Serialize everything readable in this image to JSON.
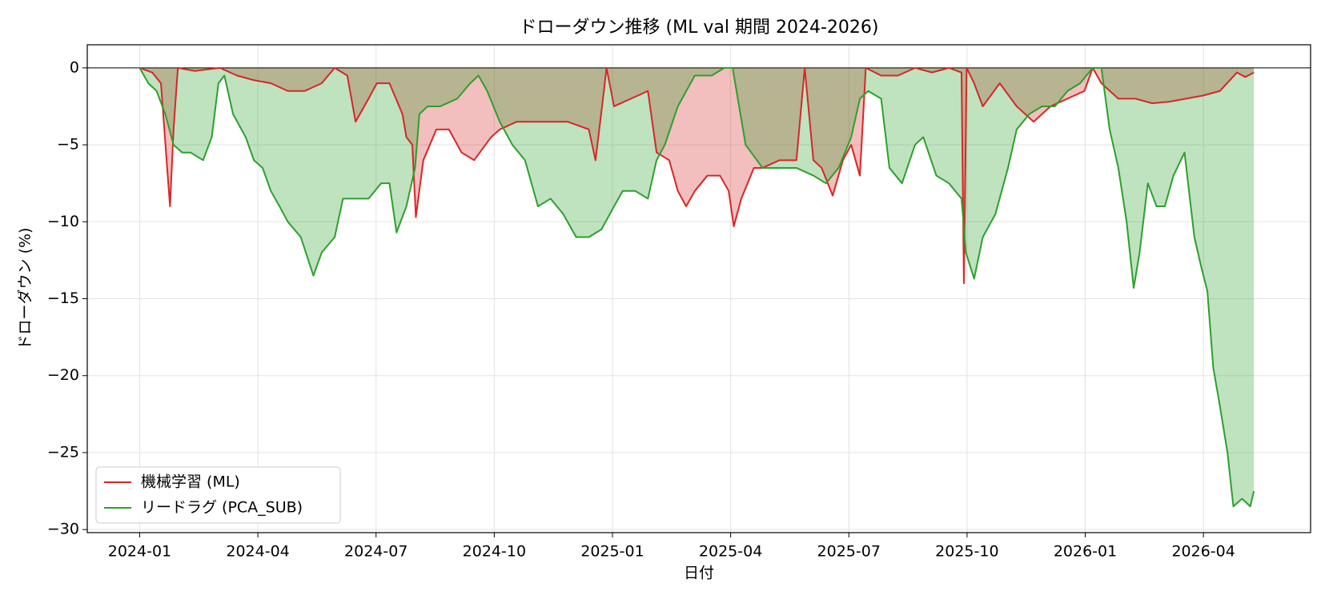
{
  "chart_data": {
    "type": "drawdown",
    "title": "ドローダウン推移 (ML val 期間 2024-2026)",
    "x_label": "日付",
    "y_label": "ドローダウン (%)",
    "xlim": [
      -1.33,
      29.72
    ],
    "ylim": [
      -30.2,
      1.5
    ],
    "xticks": [
      {
        "value": 0,
        "label": "2024-01"
      },
      {
        "value": 3,
        "label": "2024-04"
      },
      {
        "value": 6,
        "label": "2024-07"
      },
      {
        "value": 9,
        "label": "2024-10"
      },
      {
        "value": 12,
        "label": "2025-01"
      },
      {
        "value": 15,
        "label": "2025-04"
      },
      {
        "value": 18,
        "label": "2025-07"
      },
      {
        "value": 21,
        "label": "2025-10"
      },
      {
        "value": 24,
        "label": "2026-01"
      },
      {
        "value": 27,
        "label": "2026-04"
      }
    ],
    "yticks": [
      0,
      {
        "value": -5,
        "label": "−5"
      },
      {
        "value": -10,
        "label": "−10"
      },
      {
        "value": -15,
        "label": "−15"
      },
      {
        "value": -20,
        "label": "−20"
      },
      {
        "value": -25,
        "label": "−25"
      },
      {
        "value": -30,
        "label": "−30"
      }
    ],
    "grid": true,
    "legend": "lower left",
    "series": [
      {
        "name": "機械学習 (ML)",
        "color": "#d62728",
        "x": [
          0,
          0.32,
          0.54,
          0.77,
          0.86,
          0.97,
          1.4,
          2.04,
          2.47,
          2.9,
          3.33,
          3.76,
          4.19,
          4.62,
          4.95,
          5.27,
          5.48,
          5.81,
          6.02,
          6.34,
          6.67,
          6.77,
          6.92,
          7.01,
          7.2,
          7.53,
          7.85,
          8.17,
          8.49,
          8.92,
          9.14,
          9.57,
          10.22,
          10.86,
          11.4,
          11.57,
          11.76,
          11.85,
          12.04,
          12.47,
          12.9,
          13.12,
          13.44,
          13.66,
          13.87,
          14.09,
          14.41,
          14.73,
          14.95,
          15.08,
          15.27,
          15.59,
          15.81,
          16.24,
          16.67,
          16.88,
          17.1,
          17.31,
          17.59,
          17.85,
          18.06,
          18.28,
          18.43,
          18.82,
          19.25,
          19.68,
          20.11,
          20.54,
          20.86,
          20.92,
          20.99,
          21.18,
          21.4,
          21.83,
          22.26,
          22.69,
          23.12,
          23.55,
          23.98,
          24.19,
          24.41,
          24.84,
          25.27,
          25.7,
          26.13,
          26.56,
          26.99,
          27.42,
          27.85,
          28.06,
          28.28
        ],
        "values": [
          0,
          -0.3,
          -1,
          -9,
          -4,
          0,
          -0.2,
          0,
          -0.5,
          -0.8,
          -1,
          -1.5,
          -1.5,
          -1,
          0,
          -0.5,
          -3.5,
          -2,
          -1,
          -1,
          -3,
          -4.5,
          -5,
          -9.7,
          -6,
          -4,
          -4,
          -5.5,
          -6,
          -4.5,
          -4,
          -3.5,
          -3.5,
          -3.5,
          -4,
          -6,
          -2,
          0,
          -2.5,
          -2,
          -1.5,
          -5.5,
          -6,
          -8,
          -9,
          -8,
          -7,
          -7,
          -8,
          -10.3,
          -8.5,
          -6.5,
          -6.5,
          -6,
          -6,
          0,
          -6,
          -6.5,
          -8.3,
          -6,
          -5,
          -7,
          0,
          -0.5,
          -0.5,
          0,
          -0.3,
          0,
          -0.3,
          -14,
          0,
          -1,
          -2.5,
          -1,
          -2.5,
          -3.5,
          -2.5,
          -2,
          -1.5,
          0,
          -1,
          -2,
          -2,
          -2.3,
          -2.2,
          -2,
          -1.8,
          -1.5,
          -0.3,
          -0.6,
          -0.3
        ]
      },
      {
        "name": "リードラグ (PCA_SUB)",
        "color": "#2ca02c",
        "x": [
          0,
          0.22,
          0.43,
          0.65,
          0.86,
          1.08,
          1.29,
          1.61,
          1.83,
          2.0,
          2.15,
          2.37,
          2.69,
          2.9,
          3.12,
          3.33,
          3.55,
          3.76,
          4.09,
          4.41,
          4.62,
          4.95,
          5.16,
          5.48,
          5.81,
          6.13,
          6.34,
          6.52,
          6.77,
          6.99,
          7.1,
          7.31,
          7.63,
          8.06,
          8.39,
          8.6,
          8.82,
          9.14,
          9.46,
          9.78,
          10.11,
          10.43,
          10.75,
          11.08,
          11.4,
          11.72,
          12.04,
          12.26,
          12.58,
          12.9,
          13.12,
          13.33,
          13.66,
          14.09,
          14.52,
          14.84,
          15.05,
          15.38,
          15.81,
          16.24,
          16.67,
          17.1,
          17.42,
          17.74,
          18.06,
          18.28,
          18.49,
          18.82,
          19.03,
          19.35,
          19.68,
          19.89,
          20.22,
          20.54,
          20.86,
          20.97,
          21.18,
          21.4,
          21.72,
          22.04,
          22.26,
          22.58,
          22.9,
          23.23,
          23.55,
          23.87,
          24.19,
          24.41,
          24.62,
          24.84,
          25.05,
          25.23,
          25.38,
          25.59,
          25.81,
          26.02,
          26.24,
          26.52,
          26.77,
          26.95,
          27.1,
          27.25,
          27.42,
          27.61,
          27.76,
          27.98,
          28.19,
          28.28
        ],
        "values": [
          0,
          -1,
          -1.5,
          -3,
          -5,
          -5.5,
          -5.5,
          -6,
          -4.5,
          -1,
          -0.5,
          -3,
          -4.5,
          -6,
          -6.5,
          -8,
          -9,
          -10,
          -11,
          -13.5,
          -12,
          -11,
          -8.5,
          -8.5,
          -8.5,
          -7.5,
          -7.5,
          -10.7,
          -9,
          -6.5,
          -3,
          -2.5,
          -2.5,
          -2,
          -1,
          -0.5,
          -1.5,
          -3.5,
          -5,
          -6,
          -9,
          -8.5,
          -9.5,
          -11,
          -11,
          -10.5,
          -9,
          -8,
          -8,
          -8.5,
          -6,
          -5,
          -2.5,
          -0.5,
          -0.5,
          0,
          0,
          -5,
          -6.5,
          -6.5,
          -6.5,
          -7,
          -7.5,
          -6.5,
          -4.5,
          -2,
          -1.5,
          -2,
          -6.5,
          -7.5,
          -5,
          -4.5,
          -7,
          -7.5,
          -8.5,
          -12,
          -13.7,
          -11,
          -9.5,
          -6.5,
          -4,
          -3,
          -2.5,
          -2.5,
          -1.5,
          -1,
          0,
          0,
          -4,
          -6.5,
          -10,
          -14.3,
          -12,
          -7.5,
          -9,
          -9,
          -7,
          -5.5,
          -11,
          -13,
          -14.5,
          -19.5,
          -22,
          -25,
          -28.5,
          -28,
          -28.5,
          -27.5
        ]
      }
    ]
  }
}
